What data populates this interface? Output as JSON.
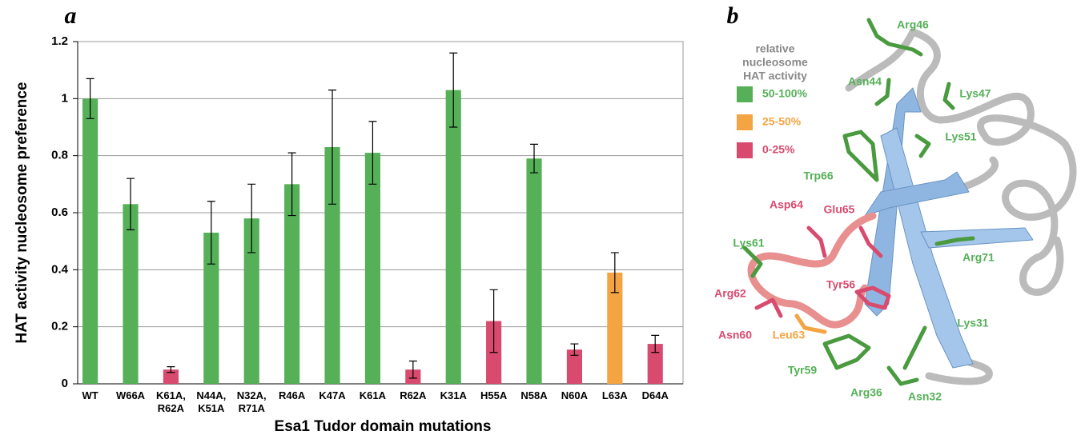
{
  "chart_data": {
    "type": "bar",
    "panel_label": "a",
    "xlabel": "Esa1 Tudor domain mutations",
    "ylabel": "HAT activity nucleosome preference",
    "categories": [
      "WT",
      "W66A",
      "K61A,\nR62A",
      "N44A,\nK51A",
      "N32A,\nR71A",
      "R46A",
      "K47A",
      "K61A",
      "R62A",
      "K31A",
      "H55A",
      "N58A",
      "N60A",
      "L63A",
      "D64A"
    ],
    "values": [
      1.0,
      0.63,
      0.05,
      0.53,
      0.58,
      0.7,
      0.83,
      0.81,
      0.05,
      1.03,
      0.22,
      0.79,
      0.12,
      0.39,
      0.14
    ],
    "errors": [
      0.07,
      0.09,
      0.01,
      0.11,
      0.12,
      0.11,
      0.2,
      0.11,
      0.03,
      0.13,
      0.11,
      0.05,
      0.02,
      0.07,
      0.03
    ],
    "colors": [
      "#55b058",
      "#55b058",
      "#d94a6f",
      "#55b058",
      "#55b058",
      "#55b058",
      "#55b058",
      "#55b058",
      "#d94a6f",
      "#55b058",
      "#d94a6f",
      "#55b058",
      "#d94a6f",
      "#f5a443",
      "#d94a6f"
    ],
    "ylim": [
      0,
      1.2
    ],
    "yticks": [
      0,
      0.2,
      0.4,
      0.6,
      0.8,
      1,
      1.2
    ],
    "grid": true
  },
  "structure": {
    "panel_label": "b",
    "legend": {
      "title_lines": [
        "relative",
        "nucleosome",
        "HAT activity"
      ],
      "entries": [
        {
          "label": "50-100%",
          "color": "#55b058"
        },
        {
          "label": "25-50%",
          "color": "#f5a443"
        },
        {
          "label": "0-25%",
          "color": "#d94a6f"
        }
      ]
    },
    "residues": [
      {
        "label": "Arg46",
        "color": "#55b058"
      },
      {
        "label": "Asn44",
        "color": "#55b058"
      },
      {
        "label": "Lys47",
        "color": "#55b058"
      },
      {
        "label": "Lys51",
        "color": "#55b058"
      },
      {
        "label": "Trp66",
        "color": "#55b058"
      },
      {
        "label": "Asp64",
        "color": "#d94a6f"
      },
      {
        "label": "Glu65",
        "color": "#d94a6f"
      },
      {
        "label": "Lys61",
        "color": "#55b058"
      },
      {
        "label": "Arg71",
        "color": "#55b058"
      },
      {
        "label": "Tyr56",
        "color": "#d94a6f"
      },
      {
        "label": "Arg62",
        "color": "#d94a6f"
      },
      {
        "label": "Asn60",
        "color": "#d94a6f"
      },
      {
        "label": "Leu63",
        "color": "#f5a443"
      },
      {
        "label": "Lys31",
        "color": "#55b058"
      },
      {
        "label": "Tyr59",
        "color": "#55b058"
      },
      {
        "label": "Arg36",
        "color": "#55b058"
      },
      {
        "label": "Asn32",
        "color": "#55b058"
      }
    ]
  }
}
